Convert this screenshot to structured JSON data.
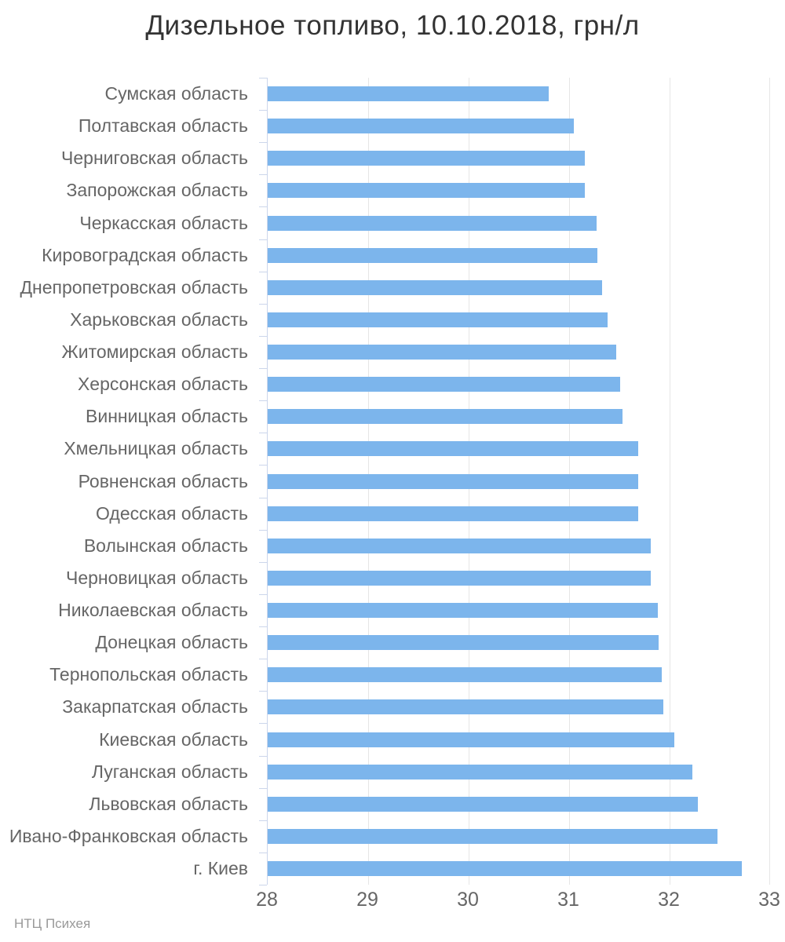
{
  "header": {
    "title": "Дизельное топливо, 10.10.2018, грн/л"
  },
  "credits": {
    "label": "НТЦ Психея"
  },
  "chart_data": {
    "type": "bar",
    "orientation": "horizontal",
    "title": "Дизельное топливо, 10.10.2018, грн/л",
    "date": "10.10.2018",
    "unit": "грн/л",
    "xlabel": "",
    "ylabel": "",
    "grid": true,
    "legend": false,
    "xlim": [
      28,
      33
    ],
    "x_ticks": [
      28,
      29,
      30,
      31,
      32,
      33
    ],
    "categories": [
      "Сумская область",
      "Полтавская область",
      "Черниговская область",
      "Запорожская область",
      "Черкасская область",
      "Кировоградская область",
      "Днепропетровская область",
      "Харьковская область",
      "Житомирская область",
      "Херсонская область",
      "Винницкая область",
      "Хмельницкая область",
      "Ровненская область",
      "Одесская область",
      "Волынская область",
      "Черновицкая область",
      "Николаевская область",
      "Донецкая область",
      "Тернопольская область",
      "Закарпатская область",
      "Киевская область",
      "Луганская область",
      "Львовская область",
      "Ивано-Франковская область",
      "г. Киев"
    ],
    "values": [
      30.8,
      31.05,
      31.16,
      31.16,
      31.27,
      31.28,
      31.33,
      31.38,
      31.47,
      31.51,
      31.53,
      31.69,
      31.69,
      31.69,
      31.81,
      31.81,
      31.88,
      31.89,
      31.92,
      31.94,
      32.05,
      32.23,
      32.28,
      32.48,
      32.72
    ],
    "bar_color": "#7cb5ec",
    "grid_color": "#e6e6e6",
    "axis_color": "#ccd6eb",
    "text_color": "#666666",
    "title_color": "#333333",
    "credits_color": "#999999"
  }
}
